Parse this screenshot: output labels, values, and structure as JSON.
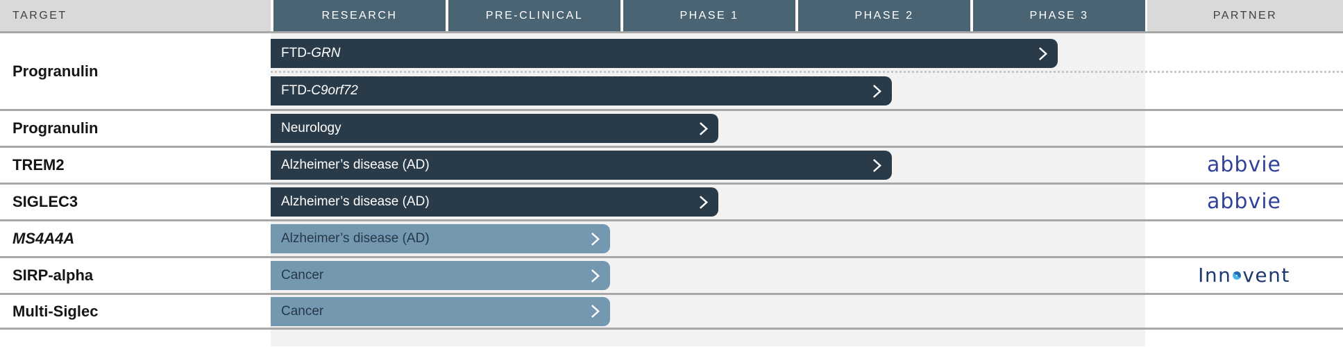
{
  "title": "Therapeutic pipeline chart",
  "colors": {
    "phase_header_bg": "#4a6473",
    "side_header_bg": "#d9d9d9",
    "side_header_text": "#3f3f3f",
    "bar_dark": "#293b48",
    "bar_light": "#7498b0",
    "bar_dark_text": "#ffffff",
    "bar_light_text": "#253847",
    "chart_track_bg": "#f2f2f2",
    "row_divider": "#a8a8a8",
    "dotted_divider": "#c6c6c6",
    "abbvie_blue": "#32429b",
    "innovent_navy": "#1d3a6d",
    "innovent_accent_blue": "#4ab3e8"
  },
  "header": {
    "target_label": "TARGET",
    "phases": [
      "RESEARCH",
      "PRE-CLINICAL",
      "PHASE 1",
      "PHASE 2",
      "PHASE 3"
    ],
    "partner_label": "PARTNER"
  },
  "partner_logos": {
    "abbvie": {
      "text": "abbvie"
    },
    "Innovent": {
      "pre": "Inn",
      "post": "vent"
    }
  },
  "chart_data": {
    "type": "bar",
    "subtype": "drug-development-pipeline",
    "phase_scale": [
      "RESEARCH",
      "PRE-CLINICAL",
      "PHASE 1",
      "PHASE 2",
      "PHASE 3"
    ],
    "extent_units": "phase widths from start of RESEARCH (1 = end of RESEARCH, 5 = end of PHASE 3)",
    "groups": [
      {
        "target": "Progranulin",
        "target_italic": false,
        "partner": "",
        "programs": [
          {
            "label_parts": [
              {
                "t": "FTD-",
                "i": false
              },
              {
                "t": "GRN",
                "i": true
              }
            ],
            "extent": 4.5,
            "phase_reached": "PHASE 3",
            "style": "dark"
          },
          {
            "label_parts": [
              {
                "t": "FTD-",
                "i": false
              },
              {
                "t": "C9orf72",
                "i": true
              }
            ],
            "extent": 3.55,
            "phase_reached": "PHASE 2",
            "style": "dark"
          }
        ]
      },
      {
        "target": "Progranulin",
        "target_italic": false,
        "partner": "",
        "programs": [
          {
            "label_parts": [
              {
                "t": "Neurology",
                "i": false
              }
            ],
            "extent": 2.56,
            "phase_reached": "PHASE 1",
            "style": "dark"
          }
        ]
      },
      {
        "target": "TREM2",
        "target_italic": false,
        "partner": "abbvie",
        "programs": [
          {
            "label_parts": [
              {
                "t": "Alzheimer’s disease (AD)",
                "i": false
              }
            ],
            "extent": 3.55,
            "phase_reached": "PHASE 2",
            "style": "dark"
          }
        ]
      },
      {
        "target": "SIGLEC3",
        "target_italic": false,
        "partner": "abbvie",
        "programs": [
          {
            "label_parts": [
              {
                "t": "Alzheimer’s disease (AD)",
                "i": false
              }
            ],
            "extent": 2.56,
            "phase_reached": "PHASE 1",
            "style": "dark"
          }
        ]
      },
      {
        "target": "MS4A4A",
        "target_italic": true,
        "partner": "",
        "programs": [
          {
            "label_parts": [
              {
                "t": "Alzheimer’s disease (AD)",
                "i": false
              }
            ],
            "extent": 1.94,
            "phase_reached": "PRE-CLINICAL",
            "style": "light"
          }
        ]
      },
      {
        "target": "SIRP-alpha",
        "target_italic": false,
        "partner": "Innovent",
        "programs": [
          {
            "label_parts": [
              {
                "t": "Cancer",
                "i": false
              }
            ],
            "extent": 1.94,
            "phase_reached": "PRE-CLINICAL",
            "style": "light"
          }
        ]
      },
      {
        "target": "Multi-Siglec",
        "target_italic": false,
        "partner": "",
        "programs": [
          {
            "label_parts": [
              {
                "t": "Cancer",
                "i": false
              }
            ],
            "extent": 1.94,
            "phase_reached": "PRE-CLINICAL",
            "style": "light"
          }
        ]
      }
    ]
  }
}
